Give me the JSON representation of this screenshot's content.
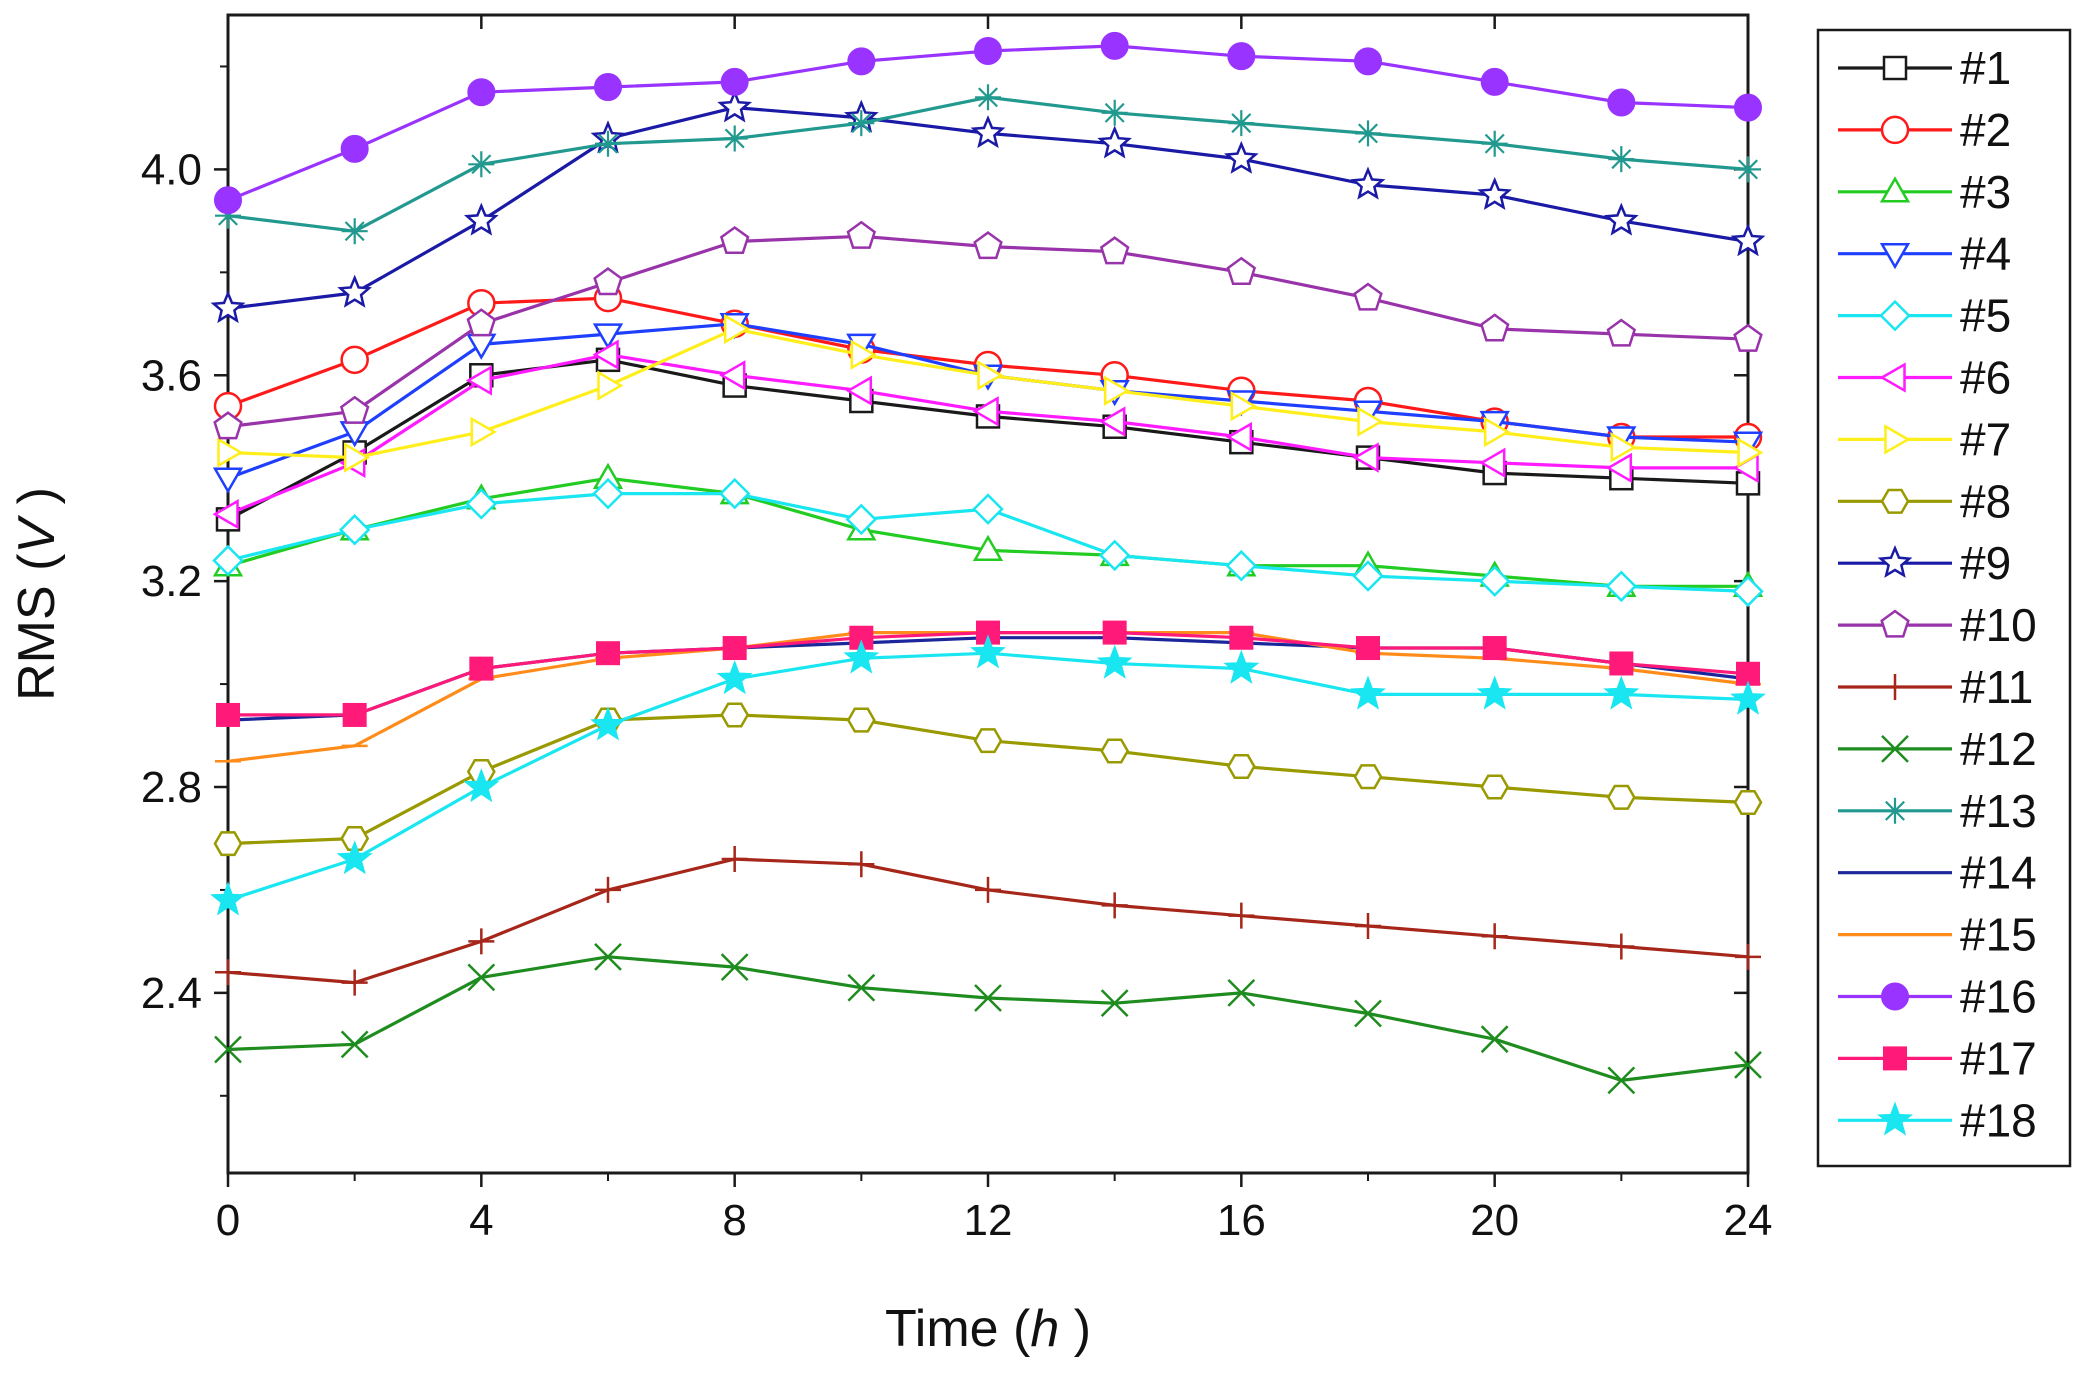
{
  "chart_data": {
    "type": "line",
    "title": "",
    "xlabel_main": "Time (",
    "xlabel_unit": "h",
    "xlabel_close": " )",
    "ylabel_main": "RMS (",
    "ylabel_unit": "V",
    "ylabel_close": " )",
    "xlim": [
      0,
      24
    ],
    "ylim": [
      2.05,
      4.3
    ],
    "x_ticks": [
      0,
      4,
      8,
      12,
      16,
      20,
      24
    ],
    "x_tick_labels": [
      "0",
      "4",
      "8",
      "12",
      "16",
      "20",
      "24"
    ],
    "y_ticks": [
      2.4,
      2.8,
      3.2,
      3.6,
      4.0
    ],
    "y_tick_labels": [
      "2.4",
      "2.8",
      "3.2",
      "3.6",
      "4.0"
    ],
    "x": [
      0,
      2,
      4,
      6,
      8,
      10,
      12,
      14,
      16,
      18,
      20,
      22,
      24
    ],
    "series": [
      {
        "name": "#1",
        "color": "#1a1a1a",
        "marker": "square",
        "values": [
          3.32,
          3.45,
          3.6,
          3.63,
          3.58,
          3.55,
          3.52,
          3.5,
          3.47,
          3.44,
          3.41,
          3.4,
          3.39
        ]
      },
      {
        "name": "#2",
        "color": "#ff1a1a",
        "marker": "circle",
        "values": [
          3.54,
          3.63,
          3.74,
          3.75,
          3.7,
          3.65,
          3.62,
          3.6,
          3.57,
          3.55,
          3.51,
          3.48,
          3.48
        ]
      },
      {
        "name": "#3",
        "color": "#22cc22",
        "marker": "triangle-up",
        "values": [
          3.23,
          3.3,
          3.36,
          3.4,
          3.37,
          3.3,
          3.26,
          3.25,
          3.23,
          3.23,
          3.21,
          3.19,
          3.19
        ]
      },
      {
        "name": "#4",
        "color": "#1f3fff",
        "marker": "triangle-down",
        "values": [
          3.4,
          3.49,
          3.66,
          3.68,
          3.7,
          3.66,
          3.6,
          3.57,
          3.55,
          3.53,
          3.51,
          3.48,
          3.47
        ]
      },
      {
        "name": "#5",
        "color": "#19e6f0",
        "marker": "diamond",
        "values": [
          3.24,
          3.3,
          3.35,
          3.37,
          3.37,
          3.32,
          3.34,
          3.25,
          3.23,
          3.21,
          3.2,
          3.19,
          3.18
        ]
      },
      {
        "name": "#6",
        "color": "#ff1aff",
        "marker": "triangle-left",
        "values": [
          3.33,
          3.43,
          3.59,
          3.64,
          3.6,
          3.57,
          3.53,
          3.51,
          3.48,
          3.44,
          3.43,
          3.42,
          3.42
        ]
      },
      {
        "name": "#7",
        "color": "#ffee1a",
        "marker": "triangle-right",
        "values": [
          3.45,
          3.44,
          3.49,
          3.58,
          3.69,
          3.64,
          3.6,
          3.57,
          3.54,
          3.51,
          3.49,
          3.46,
          3.45
        ]
      },
      {
        "name": "#8",
        "color": "#999900",
        "marker": "hexagon",
        "values": [
          2.69,
          2.7,
          2.83,
          2.93,
          2.94,
          2.93,
          2.89,
          2.87,
          2.84,
          2.82,
          2.8,
          2.78,
          2.77
        ]
      },
      {
        "name": "#9",
        "color": "#1a1aa6",
        "marker": "star-open",
        "values": [
          3.73,
          3.76,
          3.9,
          4.06,
          4.12,
          4.1,
          4.07,
          4.05,
          4.02,
          3.97,
          3.95,
          3.9,
          3.86
        ]
      },
      {
        "name": "#10",
        "color": "#9933aa",
        "marker": "pentagon",
        "values": [
          3.5,
          3.53,
          3.7,
          3.78,
          3.86,
          3.87,
          3.85,
          3.84,
          3.8,
          3.75,
          3.69,
          3.68,
          3.67
        ]
      },
      {
        "name": "#11",
        "color": "#a6261a",
        "marker": "plus",
        "values": [
          2.44,
          2.42,
          2.5,
          2.6,
          2.66,
          2.65,
          2.6,
          2.57,
          2.55,
          2.53,
          2.51,
          2.49,
          2.47
        ]
      },
      {
        "name": "#12",
        "color": "#1f8c1f",
        "marker": "x",
        "values": [
          2.29,
          2.3,
          2.43,
          2.47,
          2.45,
          2.41,
          2.39,
          2.38,
          2.4,
          2.36,
          2.31,
          2.23,
          2.26
        ]
      },
      {
        "name": "#13",
        "color": "#22998f",
        "marker": "asterisk",
        "values": [
          3.91,
          3.88,
          4.01,
          4.05,
          4.06,
          4.09,
          4.14,
          4.11,
          4.09,
          4.07,
          4.05,
          4.02,
          4.0
        ]
      },
      {
        "name": "#14",
        "color": "#1a2699",
        "marker": "none",
        "values": [
          2.93,
          2.94,
          3.03,
          3.06,
          3.07,
          3.08,
          3.09,
          3.09,
          3.08,
          3.07,
          3.07,
          3.04,
          3.01
        ]
      },
      {
        "name": "#15",
        "color": "#ff8c1a",
        "marker": "hline",
        "values": [
          2.85,
          2.88,
          3.01,
          3.05,
          3.07,
          3.1,
          3.1,
          3.1,
          3.1,
          3.06,
          3.05,
          3.03,
          3.0
        ]
      },
      {
        "name": "#16",
        "color": "#9933ff",
        "marker": "circle-filled",
        "values": [
          3.94,
          4.04,
          4.15,
          4.16,
          4.17,
          4.21,
          4.23,
          4.24,
          4.22,
          4.21,
          4.17,
          4.13,
          4.12
        ]
      },
      {
        "name": "#17",
        "color": "#ff1a7a",
        "marker": "square-filled",
        "values": [
          2.94,
          2.94,
          3.03,
          3.06,
          3.07,
          3.09,
          3.1,
          3.1,
          3.09,
          3.07,
          3.07,
          3.04,
          3.02
        ]
      },
      {
        "name": "#18",
        "color": "#19e6f0",
        "marker": "star-filled",
        "values": [
          2.58,
          2.66,
          2.8,
          2.92,
          3.01,
          3.05,
          3.06,
          3.04,
          3.03,
          2.98,
          2.98,
          2.98,
          2.97
        ]
      }
    ]
  }
}
